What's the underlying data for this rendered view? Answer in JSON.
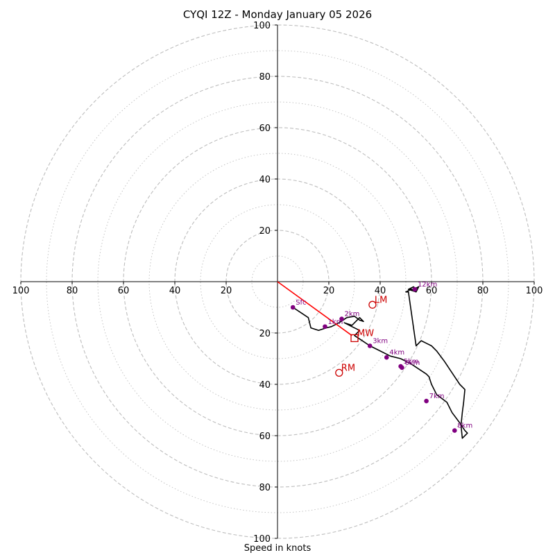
{
  "chart_data": {
    "type": "scatter",
    "subtype": "hodograph",
    "title": "CYQI 12Z - Monday January 05 2026",
    "xlabel": "Speed in knots",
    "ylabel": "",
    "xlim": [
      -100,
      100
    ],
    "ylim": [
      -100,
      100
    ],
    "ring_major": [
      20,
      40,
      60,
      80,
      100
    ],
    "ring_minor": [
      10,
      30,
      50,
      70,
      90
    ],
    "x_ticks": [
      {
        "value": -100,
        "label": "100"
      },
      {
        "value": -80,
        "label": "80"
      },
      {
        "value": -60,
        "label": "60"
      },
      {
        "value": -40,
        "label": "40"
      },
      {
        "value": -20,
        "label": "20"
      },
      {
        "value": 20,
        "label": "20"
      },
      {
        "value": 40,
        "label": "40"
      },
      {
        "value": 60,
        "label": "60"
      },
      {
        "value": 80,
        "label": "80"
      },
      {
        "value": 100,
        "label": "100"
      }
    ],
    "y_ticks": [
      {
        "value": 100,
        "label": "100"
      },
      {
        "value": 80,
        "label": "80"
      },
      {
        "value": 60,
        "label": "60"
      },
      {
        "value": 40,
        "label": "40"
      },
      {
        "value": 20,
        "label": "20"
      },
      {
        "value": -20,
        "label": "20"
      },
      {
        "value": -40,
        "label": "40"
      },
      {
        "value": -60,
        "label": "60"
      },
      {
        "value": -80,
        "label": "80"
      },
      {
        "value": -100,
        "label": "100"
      }
    ],
    "hodograph_trace": {
      "x": [
        6,
        9,
        12,
        13,
        16,
        19,
        21,
        24,
        27,
        30,
        32,
        33.5,
        32,
        29,
        26,
        29,
        32,
        30,
        33,
        36,
        40,
        44,
        48,
        52,
        55,
        58,
        59,
        60,
        62,
        66,
        68,
        71,
        73,
        74,
        72,
        71.5,
        72,
        72.5,
        73,
        71,
        69,
        65,
        62,
        60,
        58,
        56,
        54,
        51,
        50,
        52,
        54,
        53,
        51,
        54,
        55,
        53
      ],
      "y": [
        -10,
        -12,
        -14,
        -18,
        -19,
        -18,
        -17.5,
        -16,
        -14,
        -13.5,
        -15,
        -15.5,
        -14,
        -17,
        -16,
        -17.5,
        -19,
        -21,
        -23,
        -25,
        -27,
        -29,
        -30,
        -32,
        -34,
        -36,
        -37,
        -40,
        -44,
        -47,
        -51,
        -55,
        -58,
        -59,
        -61,
        -56,
        -51,
        -47,
        -42,
        -40,
        -37,
        -31,
        -27,
        -25,
        -24,
        -23,
        -25,
        -4,
        -4,
        -3,
        -3,
        -2,
        -3,
        -4,
        -2,
        -3
      ]
    },
    "series": [
      {
        "name": "Sfc",
        "x": 6,
        "y": -10
      },
      {
        "name": "1km",
        "x": 18.5,
        "y": -17.5
      },
      {
        "name": "2km",
        "x": 25,
        "y": -14.5
      },
      {
        "name": "3km",
        "x": 36,
        "y": -25
      },
      {
        "name": "4km",
        "x": 42.5,
        "y": -29.5
      },
      {
        "name": "5km",
        "x": 48,
        "y": -33
      },
      {
        "name": "6km",
        "x": 48.5,
        "y": -33.5
      },
      {
        "name": "7km",
        "x": 58,
        "y": -46.5
      },
      {
        "name": "8km",
        "x": 69,
        "y": -58
      },
      {
        "name": "12km",
        "x": 53.5,
        "y": -3
      }
    ],
    "mean_wind": {
      "label": "MW",
      "x": 30,
      "y": -22
    },
    "shear_vector": {
      "from": [
        0,
        0
      ],
      "to": [
        29,
        -21
      ]
    },
    "storm_motion": [
      {
        "label": "LM",
        "x": 37,
        "y": -9
      },
      {
        "label": "RM",
        "x": 24,
        "y": -35.5
      }
    ],
    "colors": {
      "grid": "#bdbdbd",
      "axis": "#000000",
      "trace": "#000000",
      "height_points": "#800080",
      "storm_motion": "#cc0000",
      "shear_vector": "#ff0000"
    }
  }
}
